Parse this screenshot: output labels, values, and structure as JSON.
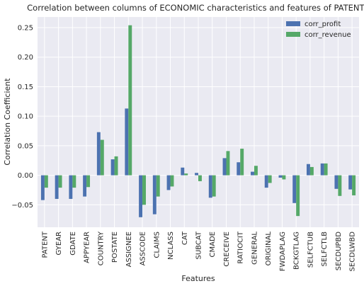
{
  "chart_data": {
    "type": "bar",
    "title": "Correlation between columns of ECONOMIC characteristics and features of PATENTS",
    "xlabel": "Features",
    "ylabel": "Correlation Coefficient",
    "ylim": [
      -0.088,
      0.268
    ],
    "yticks": [
      -0.05,
      0.0,
      0.05,
      0.1,
      0.15,
      0.2,
      0.25
    ],
    "ytick_labels": [
      "−0.05",
      "0.00",
      "0.05",
      "0.10",
      "0.15",
      "0.20",
      "0.25"
    ],
    "grid": true,
    "legend_position": "top-right",
    "categories": [
      "PATENT",
      "GYEAR",
      "GDATE",
      "APPYEAR",
      "COUNTRY",
      "POSTATE",
      "ASSIGNEE",
      "ASSCODE",
      "CLAIMS",
      "NCLASS",
      "CAT",
      "SUBCAT",
      "CMADE",
      "CRECEIVE",
      "RATIOCIT",
      "GENERAL",
      "ORIGINAL",
      "FWDAPLAG",
      "BCKGTLAG",
      "SELFCTUB",
      "SELFCTLB",
      "SECDUPBD",
      "SECDLWBD"
    ],
    "series": [
      {
        "name": "corr_profit",
        "color": "#4c72b0",
        "values": [
          -0.042,
          -0.04,
          -0.04,
          -0.036,
          0.073,
          0.027,
          0.113,
          -0.071,
          -0.066,
          -0.025,
          0.013,
          0.004,
          -0.038,
          0.029,
          0.022,
          0.006,
          -0.021,
          -0.004,
          -0.047,
          0.019,
          0.02,
          -0.023,
          -0.024
        ]
      },
      {
        "name": "corr_revenue",
        "color": "#55a868",
        "values": [
          -0.021,
          -0.021,
          -0.021,
          -0.02,
          0.06,
          0.032,
          0.254,
          -0.05,
          -0.036,
          -0.019,
          0.003,
          -0.01,
          -0.036,
          0.041,
          0.045,
          0.016,
          -0.013,
          -0.007,
          -0.069,
          0.014,
          0.02,
          -0.035,
          -0.034
        ]
      }
    ]
  }
}
